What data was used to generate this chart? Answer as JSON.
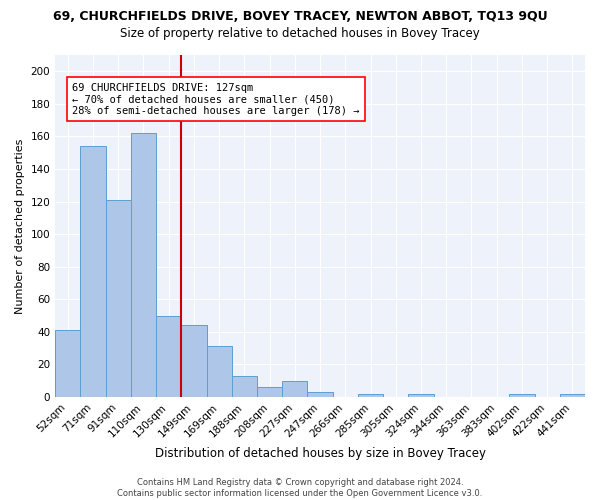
{
  "title": "69, CHURCHFIELDS DRIVE, BOVEY TRACEY, NEWTON ABBOT, TQ13 9QU",
  "subtitle": "Size of property relative to detached houses in Bovey Tracey",
  "xlabel": "Distribution of detached houses by size in Bovey Tracey",
  "ylabel": "Number of detached properties",
  "categories": [
    "52sqm",
    "71sqm",
    "91sqm",
    "110sqm",
    "130sqm",
    "149sqm",
    "169sqm",
    "188sqm",
    "208sqm",
    "227sqm",
    "247sqm",
    "266sqm",
    "285sqm",
    "305sqm",
    "324sqm",
    "344sqm",
    "363sqm",
    "383sqm",
    "402sqm",
    "422sqm",
    "441sqm"
  ],
  "values": [
    41,
    154,
    121,
    162,
    50,
    44,
    31,
    13,
    6,
    10,
    3,
    0,
    2,
    0,
    2,
    0,
    0,
    0,
    2,
    0,
    2
  ],
  "bar_color": "#aec6e8",
  "bar_edge_color": "#5a9fd4",
  "vline_color": "#cc0000",
  "vline_x_index": 4.5,
  "annotation_text": "69 CHURCHFIELDS DRIVE: 127sqm\n← 70% of detached houses are smaller (450)\n28% of semi-detached houses are larger (178) →",
  "ylim": [
    0,
    210
  ],
  "yticks": [
    0,
    20,
    40,
    60,
    80,
    100,
    120,
    140,
    160,
    180,
    200
  ],
  "footer": "Contains HM Land Registry data © Crown copyright and database right 2024.\nContains public sector information licensed under the Open Government Licence v3.0.",
  "bg_color": "#eef2fb",
  "title_fontsize": 9,
  "subtitle_fontsize": 8.5,
  "xlabel_fontsize": 8.5,
  "ylabel_fontsize": 8,
  "tick_fontsize": 7.5,
  "footer_fontsize": 6,
  "annot_fontsize": 7.5
}
